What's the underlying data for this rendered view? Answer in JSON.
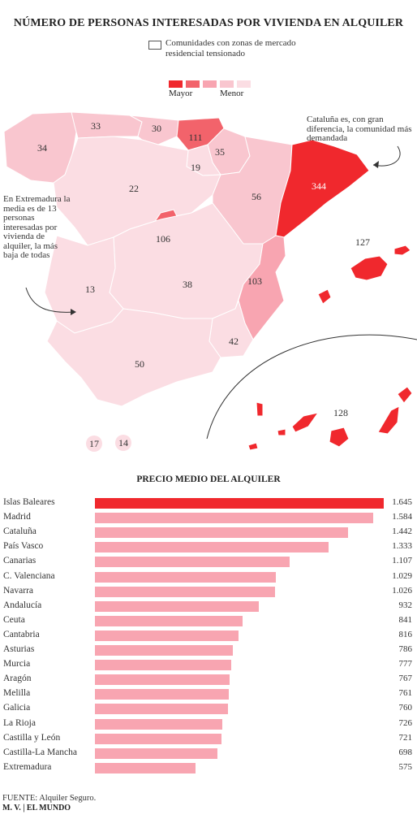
{
  "title": "NÚMERO DE PERSONAS INTERESADAS POR VIVIENDA EN ALQUILER",
  "legend": {
    "box_label": "Comunidades con zonas de mercado residencial tensionado",
    "scale": [
      "#f0282d",
      "#f2636b",
      "#f8a5b1",
      "#f9c6cf",
      "#fbdde3"
    ],
    "mayor": "Mayor",
    "menor": "Menor"
  },
  "notes": {
    "cataluna": "Cataluña es, con gran diferencia, la comunidad más demandada",
    "extremadura": "En Extremadura la media es de 13 personas interesadas por vivienda de alquiler, la más baja de todas"
  },
  "map_values": {
    "galicia": "34",
    "asturias": "33",
    "cantabria": "30",
    "pais_vasco": "111",
    "navarra": "35",
    "la_rioja": "19",
    "castilla_leon": "22",
    "aragon": "56",
    "cataluna": "344",
    "madrid": "106",
    "castilla_la_mancha": "38",
    "extremadura": "13",
    "c_valenciana": "103",
    "murcia": "42",
    "andalucia": "50",
    "baleares": "127",
    "canarias": "128",
    "ceuta": "17",
    "melilla": "14"
  },
  "chart_title": "PRECIO MEDIO DEL ALQUILER",
  "chart_data": {
    "type": "bar",
    "orientation": "horizontal",
    "categories": [
      "Islas Baleares",
      "Madrid",
      "Cataluña",
      "País Vasco",
      "Canarias",
      "C. Valenciana",
      "Navarra",
      "Andalucía",
      "Ceuta",
      "Cantabria",
      "Asturias",
      "Murcia",
      "Aragón",
      "Melilla",
      "Galicia",
      "La Rioja",
      "Castilla y León",
      "Castilla-La Mancha",
      "Extremadura"
    ],
    "values": [
      1645,
      1584,
      1442,
      1333,
      1107,
      1029,
      1026,
      932,
      841,
      816,
      786,
      777,
      767,
      761,
      760,
      726,
      721,
      698,
      575
    ],
    "value_labels": [
      "1.645",
      "1.584",
      "1.442",
      "1.333",
      "1.107",
      "1.029",
      "1.026",
      "932",
      "841",
      "816",
      "786",
      "777",
      "767",
      "761",
      "760",
      "726",
      "721",
      "698",
      "575"
    ],
    "highlight_color": "#f0282d",
    "bar_color": "#f8a5b1"
  },
  "source": "FUENTE: Alquiler Seguro.",
  "credit": "M. V. | EL MUNDO"
}
